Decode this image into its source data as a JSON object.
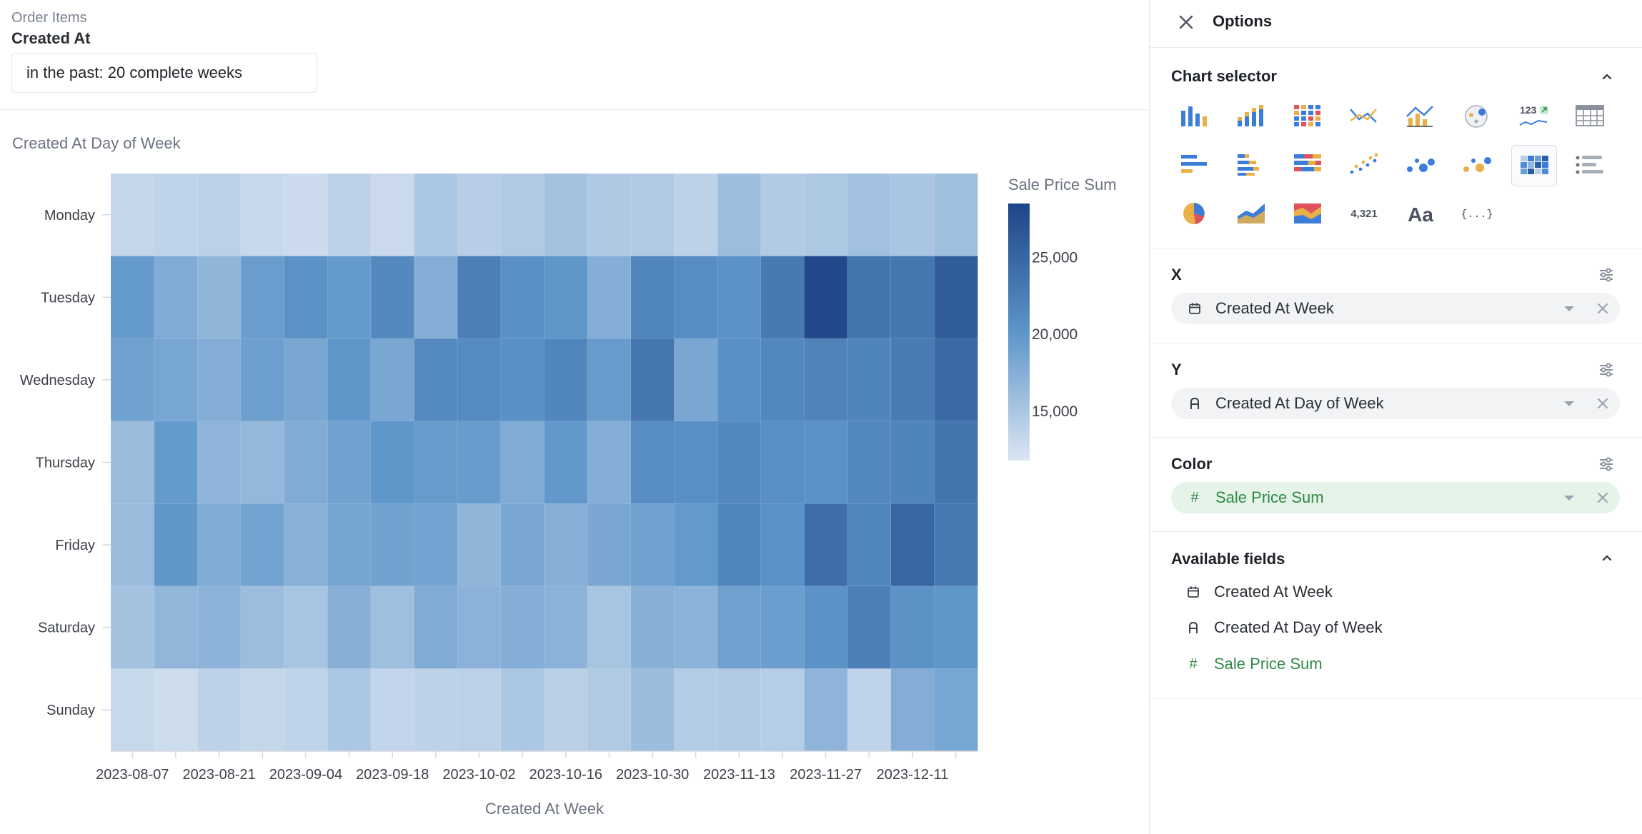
{
  "filter": {
    "dataset": "Order Items",
    "field": "Created At",
    "value": "in the past: 20 complete weeks"
  },
  "chart_data": {
    "type": "heatmap",
    "title": "Created At Day of Week",
    "xlabel": "Created At Week",
    "ylabel": "",
    "legend_title": "Sale Price Sum",
    "legend_ticks": [
      "25,000",
      "20,000",
      "15,000"
    ],
    "legend_tick_values": [
      25000,
      20000,
      15000
    ],
    "color_range": [
      12000,
      28000
    ],
    "colors": {
      "low": "#dbe5f2",
      "mid": "#5d95c9",
      "high": "#1e4488"
    },
    "x": [
      "2023-08-07",
      "2023-08-14",
      "2023-08-21",
      "2023-08-28",
      "2023-09-04",
      "2023-09-11",
      "2023-09-18",
      "2023-09-25",
      "2023-10-02",
      "2023-10-09",
      "2023-10-16",
      "2023-10-23",
      "2023-10-30",
      "2023-11-06",
      "2023-11-13",
      "2023-11-20",
      "2023-11-27",
      "2023-12-04",
      "2023-12-11",
      "2023-12-18"
    ],
    "x_tick_labels": [
      "2023-08-07",
      "2023-08-21",
      "2023-09-04",
      "2023-09-18",
      "2023-10-02",
      "2023-10-16",
      "2023-10-30",
      "2023-11-13",
      "2023-11-27",
      "2023-12-11"
    ],
    "y": [
      "Monday",
      "Tuesday",
      "Wednesday",
      "Thursday",
      "Friday",
      "Saturday",
      "Sunday"
    ],
    "values": [
      [
        13500,
        13800,
        14000,
        13200,
        13000,
        13900,
        13100,
        15000,
        14300,
        14700,
        15500,
        14800,
        14700,
        13900,
        16000,
        14600,
        14900,
        15600,
        15200,
        15800
      ],
      [
        19500,
        17800,
        16800,
        19200,
        20400,
        19500,
        21200,
        17600,
        22200,
        20500,
        19800,
        17500,
        21500,
        20800,
        20300,
        22800,
        27500,
        23200,
        23000,
        25500
      ],
      [
        18800,
        18300,
        17600,
        19000,
        18200,
        19800,
        18200,
        21100,
        21000,
        20500,
        21500,
        19400,
        23100,
        18200,
        20500,
        21300,
        21800,
        21600,
        22600,
        24300
      ],
      [
        16100,
        19500,
        16900,
        16500,
        17800,
        18800,
        19800,
        19400,
        19300,
        17800,
        19700,
        17500,
        20800,
        20600,
        21200,
        20600,
        20300,
        21300,
        21600,
        23200
      ],
      [
        16200,
        19800,
        17800,
        18600,
        17200,
        18400,
        18800,
        18700,
        16800,
        18200,
        17400,
        18200,
        18800,
        19600,
        21400,
        20300,
        24000,
        21400,
        24600,
        22800
      ],
      [
        15500,
        16700,
        17000,
        16000,
        15300,
        17300,
        15800,
        17800,
        17100,
        17500,
        17100,
        15300,
        17300,
        17000,
        18800,
        19100,
        20300,
        22200,
        20200,
        19800
      ],
      [
        13300,
        12800,
        13900,
        13500,
        13700,
        15000,
        13600,
        13900,
        14000,
        15000,
        14100,
        14700,
        16100,
        14500,
        14600,
        14400,
        16900,
        13800,
        17600,
        18300
      ]
    ]
  },
  "options": {
    "title": "Options",
    "chart_selector": {
      "title": "Chart selector",
      "icons": [
        "vertical-bar-chart-icon",
        "stacked-bar-chart-icon",
        "stacked-100-bar-chart-icon",
        "line-chart-icon",
        "bar-line-combo-chart-icon",
        "map-chart-icon",
        "kpi-trend-icon",
        "table-icon",
        "horizontal-bar-chart-icon",
        "horizontal-stacked-bar-chart-icon",
        "horizontal-stacked-100-bar-chart-icon",
        "scatter-chart-icon",
        "bubble-chart-icon",
        "colored-bubble-chart-icon",
        "heatmap-chart-icon",
        "list-chart-icon",
        "pie-chart-icon",
        "area-chart-icon",
        "stacked-area-chart-icon",
        "number-chart-icon",
        "text-chart-icon",
        "json-chart-icon"
      ],
      "kpi_label": "123",
      "number_label": "4,321",
      "text_label": "Aa",
      "json_label": "{...}",
      "selected": "heatmap-chart-icon"
    },
    "x": {
      "title": "X",
      "value": "Created At Week",
      "icon": "calendar-icon"
    },
    "y": {
      "title": "Y",
      "value": "Created At Day of Week",
      "icon": "text-type-icon"
    },
    "color": {
      "title": "Color",
      "value": "Sale Price Sum",
      "icon": "number-hash-icon"
    },
    "available_fields": {
      "title": "Available fields",
      "items": [
        {
          "label": "Created At Week",
          "icon": "calendar-icon"
        },
        {
          "label": "Created At Day of Week",
          "icon": "text-type-icon"
        },
        {
          "label": "Sale Price Sum",
          "icon": "number-hash-icon"
        }
      ]
    }
  }
}
